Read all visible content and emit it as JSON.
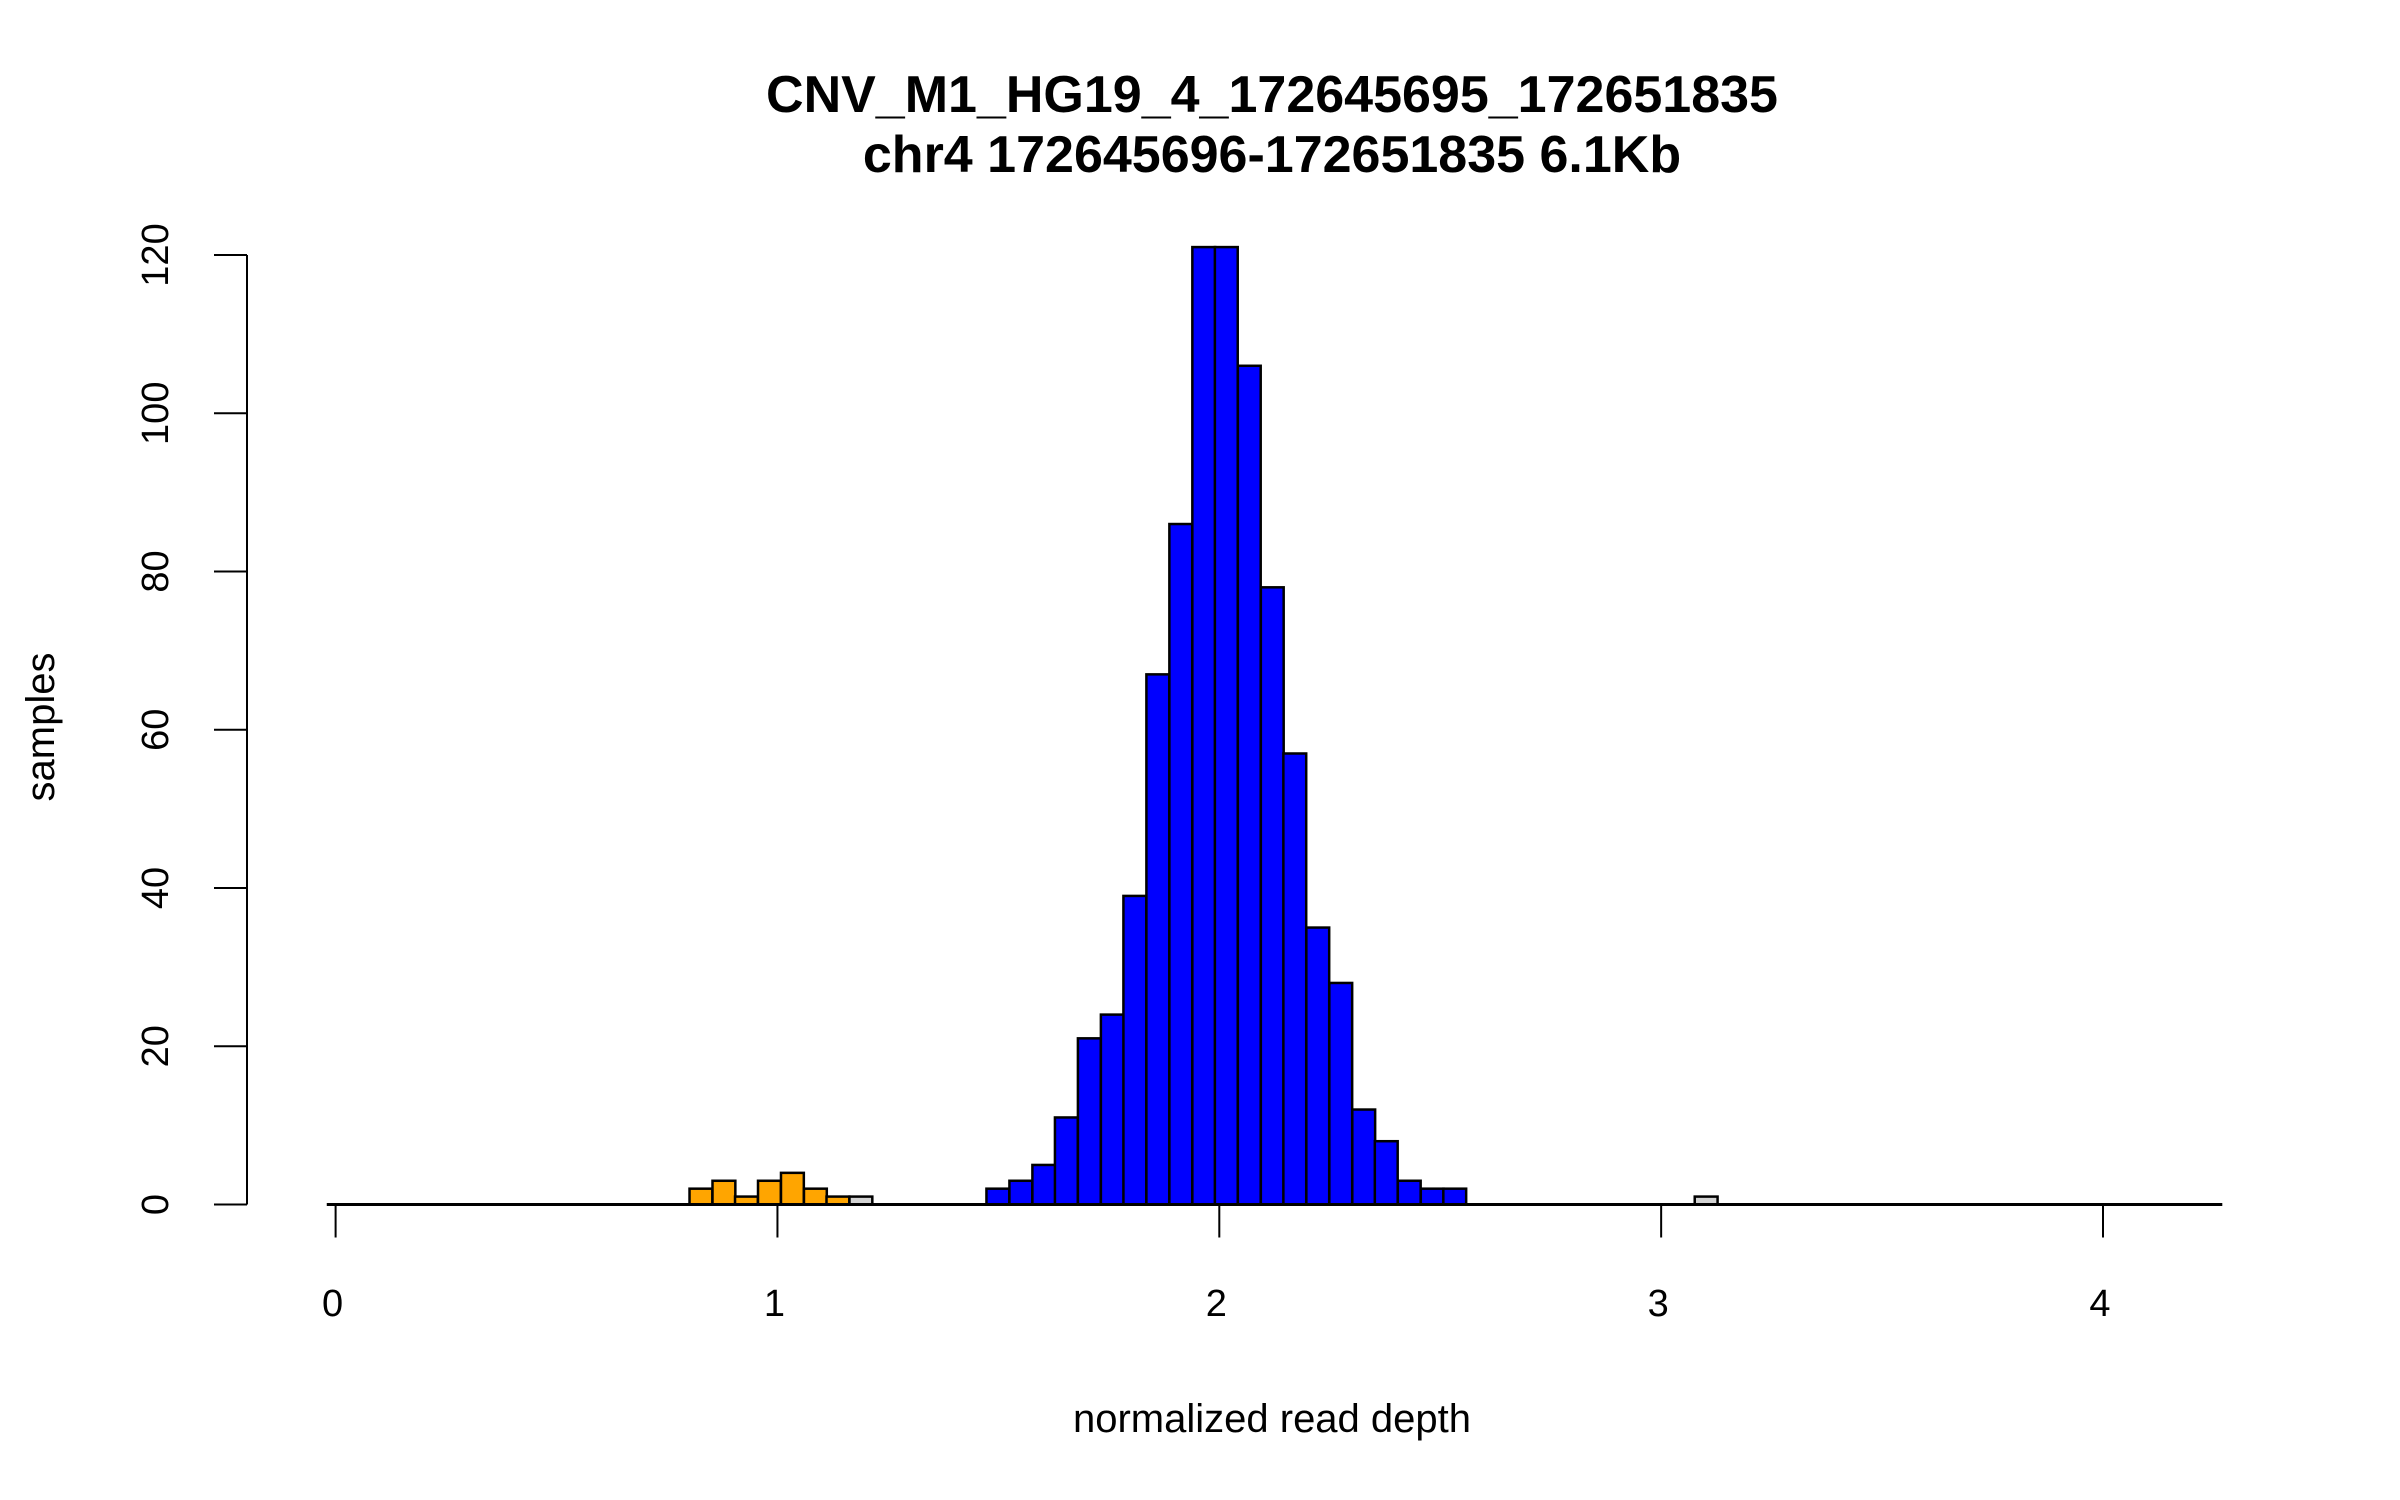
{
  "chart_data": {
    "type": "bar",
    "subtype": "histogram",
    "title": "CNV_M1_HG19_4_172645695_172651835",
    "subtitle": "chr4 172645696-172651835 6.1Kb",
    "xlabel": "normalized read depth",
    "ylabel": "samples",
    "xlim": [
      -0.02,
      4.27
    ],
    "ylim": [
      0,
      120
    ],
    "xticks": [
      "0",
      "1",
      "2",
      "3",
      "4"
    ],
    "yticks": [
      "0",
      "20",
      "40",
      "60",
      "80",
      "100",
      "120"
    ],
    "grid": false,
    "bin_width": 0.0517,
    "colors": {
      "deletion": "#FFA500",
      "normal": "#0000FF",
      "other": "#D3D3D3",
      "outline": "#000000"
    },
    "bins": [
      {
        "x0": 0.801,
        "count": 2,
        "group": "deletion"
      },
      {
        "x0": 0.853,
        "count": 3,
        "group": "deletion"
      },
      {
        "x0": 0.904,
        "count": 1,
        "group": "deletion"
      },
      {
        "x0": 0.956,
        "count": 3,
        "group": "deletion"
      },
      {
        "x0": 1.008,
        "count": 4,
        "group": "deletion"
      },
      {
        "x0": 1.06,
        "count": 2,
        "group": "deletion"
      },
      {
        "x0": 1.111,
        "count": 1,
        "group": "deletion"
      },
      {
        "x0": 1.163,
        "count": 1,
        "group": "other"
      },
      {
        "x0": 1.473,
        "count": 2,
        "group": "normal"
      },
      {
        "x0": 1.525,
        "count": 3,
        "group": "normal"
      },
      {
        "x0": 1.577,
        "count": 5,
        "group": "normal"
      },
      {
        "x0": 1.628,
        "count": 11,
        "group": "normal"
      },
      {
        "x0": 1.68,
        "count": 21,
        "group": "normal"
      },
      {
        "x0": 1.732,
        "count": 24,
        "group": "normal"
      },
      {
        "x0": 1.783,
        "count": 39,
        "group": "normal"
      },
      {
        "x0": 1.835,
        "count": 67,
        "group": "normal"
      },
      {
        "x0": 1.887,
        "count": 86,
        "group": "normal"
      },
      {
        "x0": 1.939,
        "count": 121,
        "group": "normal"
      },
      {
        "x0": 1.99,
        "count": 121,
        "group": "normal"
      },
      {
        "x0": 2.042,
        "count": 106,
        "group": "normal"
      },
      {
        "x0": 2.094,
        "count": 78,
        "group": "normal"
      },
      {
        "x0": 2.145,
        "count": 57,
        "group": "normal"
      },
      {
        "x0": 2.197,
        "count": 35,
        "group": "normal"
      },
      {
        "x0": 2.249,
        "count": 28,
        "group": "normal"
      },
      {
        "x0": 2.301,
        "count": 12,
        "group": "normal"
      },
      {
        "x0": 2.352,
        "count": 8,
        "group": "normal"
      },
      {
        "x0": 2.404,
        "count": 3,
        "group": "normal"
      },
      {
        "x0": 2.456,
        "count": 2,
        "group": "normal"
      },
      {
        "x0": 2.507,
        "count": 2,
        "group": "normal"
      },
      {
        "x0": 3.076,
        "count": 1,
        "group": "other"
      }
    ]
  }
}
